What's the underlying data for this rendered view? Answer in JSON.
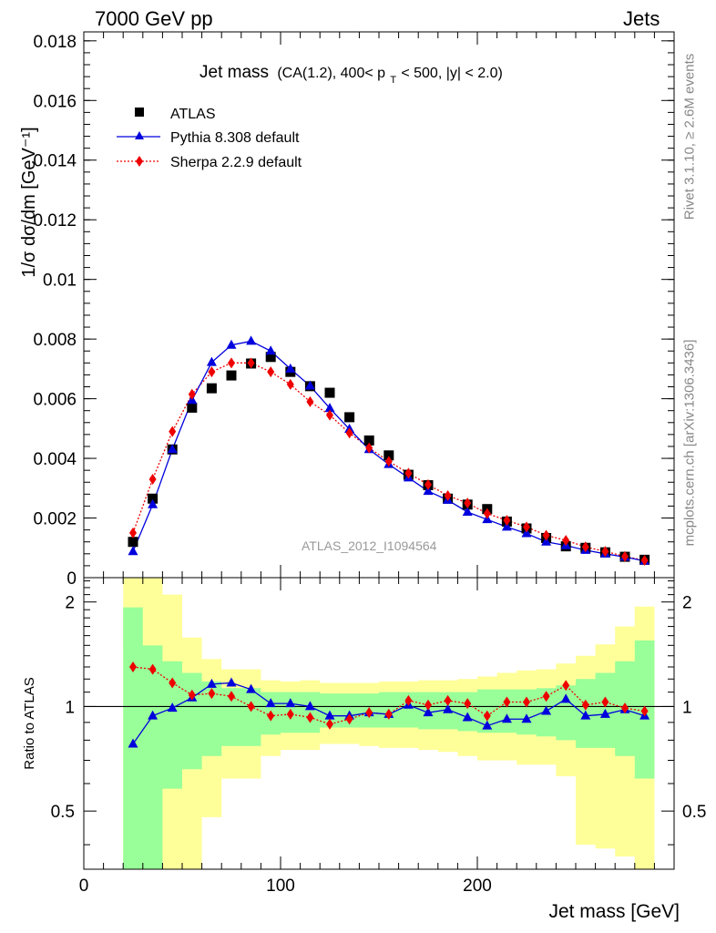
{
  "header": {
    "left": "7000 GeV pp",
    "right": "Jets"
  },
  "side_labels": {
    "rivet": "Rivet 3.1.10, ≥ 2.6M events",
    "mcplots": "mcplots.cern.ch [arXiv:1306.3436]"
  },
  "chart_data": {
    "type": "line",
    "title_main": "Jet mass",
    "title_sub": "(CA(1.2), 400< p",
    "title_sub_sub": "T",
    "title_sub_tail": " < 500, |y| < 2.0)",
    "watermark": "ATLAS_2012_I1094564",
    "xlabel": "Jet mass [GeV]",
    "ylabel": "1/σ dσ/dm [GeV⁻¹]",
    "ratio_ylabel": "Ratio to ATLAS",
    "xlim": [
      0,
      300
    ],
    "ylim": [
      0,
      0.0183
    ],
    "ratio_ylim": [
      0.34,
      2.35
    ],
    "x_ticks": [
      "0",
      "100",
      "200"
    ],
    "y_ticks": [
      "0",
      "0.002",
      "0.004",
      "0.006",
      "0.008",
      "0.01",
      "0.012",
      "0.014",
      "0.016",
      "0.018"
    ],
    "ratio_ticks": [
      "0.5",
      "1",
      "2"
    ],
    "legend": [
      {
        "label": "ATLAS"
      },
      {
        "label": "Pythia 8.308 default"
      },
      {
        "label": "Sherpa 2.2.9 default"
      }
    ],
    "colors": {
      "atlas": "#000000",
      "pythia": "#0000dd",
      "sherpa": "#ee0000",
      "band_inner": "#99ff99",
      "band_outer": "#ffff99"
    },
    "x": [
      25,
      35,
      45,
      55,
      65,
      75,
      85,
      95,
      105,
      115,
      125,
      135,
      145,
      155,
      165,
      175,
      185,
      195,
      205,
      215,
      225,
      235,
      245,
      255,
      265,
      275,
      285
    ],
    "series": [
      {
        "name": "ATLAS",
        "values": [
          0.0012,
          0.00265,
          0.0043,
          0.0057,
          0.00635,
          0.00678,
          0.00718,
          0.0074,
          0.0069,
          0.00642,
          0.0062,
          0.00538,
          0.0046,
          0.0041,
          0.00345,
          0.0031,
          0.00265,
          0.00245,
          0.0023,
          0.00188,
          0.00165,
          0.00133,
          0.00105,
          0.001,
          0.00085,
          0.0007,
          0.0006
        ]
      },
      {
        "name": "Pythia 8.308 default",
        "values": [
          0.00088,
          0.00245,
          0.0043,
          0.00595,
          0.00722,
          0.0078,
          0.00793,
          0.0076,
          0.007,
          0.00643,
          0.00568,
          0.00498,
          0.0043,
          0.0038,
          0.00335,
          0.0029,
          0.0026,
          0.0022,
          0.00195,
          0.0017,
          0.00148,
          0.0012,
          0.00108,
          0.00092,
          0.0008,
          0.00069,
          0.00056
        ]
      },
      {
        "name": "Sherpa 2.2.9 default",
        "values": [
          0.0015,
          0.0033,
          0.0049,
          0.00615,
          0.0069,
          0.0072,
          0.0072,
          0.0069,
          0.00648,
          0.0059,
          0.00545,
          0.00485,
          0.00435,
          0.0039,
          0.0035,
          0.00312,
          0.00275,
          0.0025,
          0.00215,
          0.00192,
          0.0017,
          0.00142,
          0.00125,
          0.00103,
          0.00088,
          0.00071,
          0.00058
        ]
      }
    ],
    "ratio_series": [
      {
        "name": "Pythia 8.308 default",
        "values": [
          0.78,
          0.94,
          0.99,
          1.06,
          1.16,
          1.17,
          1.12,
          1.02,
          1.02,
          1.0,
          0.94,
          0.94,
          0.96,
          0.95,
          1.01,
          0.96,
          0.98,
          0.93,
          0.88,
          0.92,
          0.92,
          0.97,
          1.05,
          0.94,
          0.95,
          0.98,
          0.94
        ]
      },
      {
        "name": "Sherpa 2.2.9 default",
        "values": [
          1.3,
          1.28,
          1.17,
          1.08,
          1.09,
          1.07,
          1.0,
          0.94,
          0.95,
          0.93,
          0.89,
          0.92,
          0.96,
          0.95,
          1.04,
          1.01,
          1.04,
          1.02,
          0.94,
          1.03,
          1.03,
          1.07,
          1.15,
          1.01,
          1.03,
          0.99,
          0.97
        ]
      }
    ],
    "ratio_band_inner": {
      "lo": [
        0.33,
        0.33,
        0.58,
        0.66,
        0.72,
        0.77,
        0.77,
        0.83,
        0.84,
        0.84,
        0.87,
        0.87,
        0.87,
        0.87,
        0.87,
        0.86,
        0.86,
        0.85,
        0.84,
        0.84,
        0.83,
        0.82,
        0.8,
        0.76,
        0.76,
        0.72,
        0.62
      ],
      "hi": [
        1.93,
        1.5,
        1.35,
        1.25,
        1.18,
        1.13,
        1.13,
        1.1,
        1.1,
        1.1,
        1.09,
        1.09,
        1.09,
        1.1,
        1.1,
        1.1,
        1.1,
        1.1,
        1.12,
        1.12,
        1.12,
        1.13,
        1.15,
        1.2,
        1.25,
        1.35,
        1.55
      ]
    },
    "ratio_band_outer": {
      "lo": [
        0.33,
        0.33,
        0.33,
        0.33,
        0.48,
        0.62,
        0.62,
        0.72,
        0.75,
        0.75,
        0.78,
        0.78,
        0.77,
        0.76,
        0.76,
        0.75,
        0.74,
        0.72,
        0.7,
        0.7,
        0.68,
        0.68,
        0.63,
        0.4,
        0.39,
        0.37,
        0.33
      ],
      "hi": [
        2.35,
        2.35,
        2.1,
        1.58,
        1.37,
        1.28,
        1.28,
        1.19,
        1.18,
        1.19,
        1.17,
        1.17,
        1.17,
        1.18,
        1.18,
        1.19,
        1.19,
        1.2,
        1.22,
        1.25,
        1.27,
        1.28,
        1.33,
        1.4,
        1.51,
        1.7,
        1.94
      ]
    }
  }
}
